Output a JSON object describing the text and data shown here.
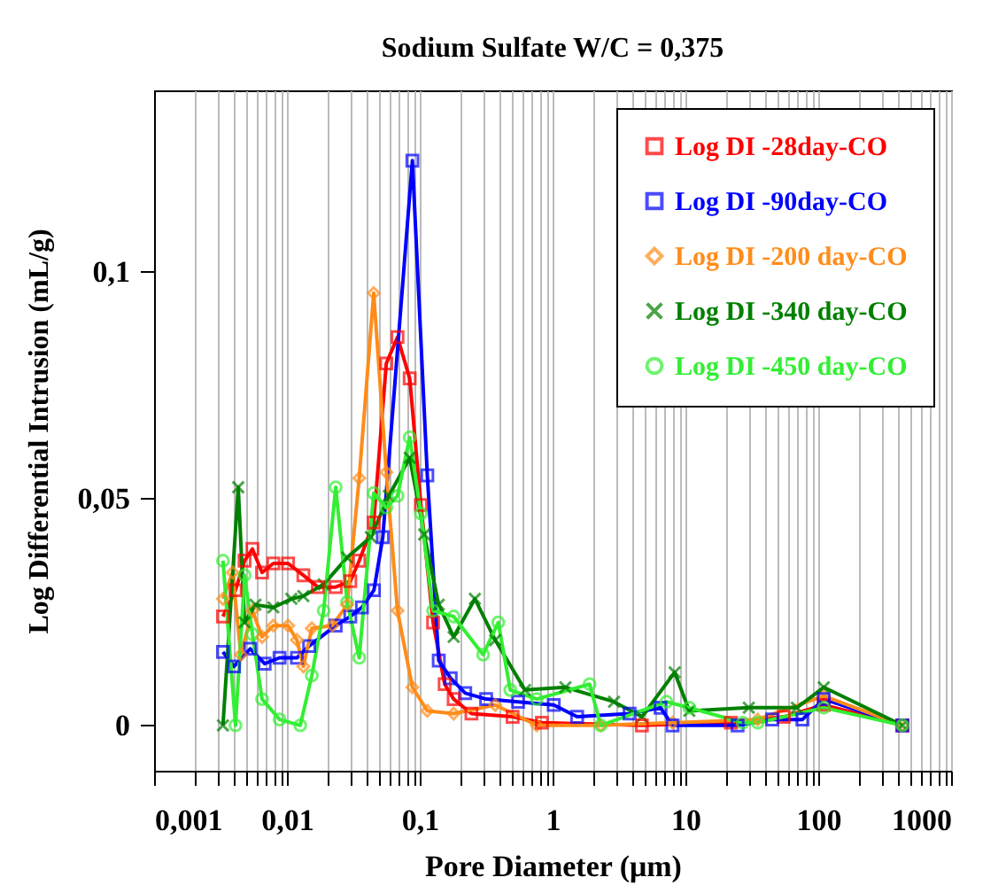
{
  "chart_data": {
    "type": "line",
    "title": "Sodium Sulfate W/C = 0,375",
    "xlabel": "Pore Diameter  (μm)",
    "ylabel": "Log Differential Intrusion  (mL/g)",
    "log": "x",
    "grid": "x",
    "legend": "top right",
    "xlim": [
      0.001,
      1000
    ],
    "ylim": [
      -0.01,
      0.14
    ],
    "xticks": [
      {
        "value": 0.001,
        "label": "0,001"
      },
      {
        "value": 0.002,
        "label": null
      },
      {
        "value": 0.003,
        "label": null
      },
      {
        "value": 0.004,
        "label": null
      },
      {
        "value": 0.005,
        "label": null
      },
      {
        "value": 0.006,
        "label": null
      },
      {
        "value": 0.007,
        "label": null
      },
      {
        "value": 0.008,
        "label": null
      },
      {
        "value": 0.009,
        "label": null
      },
      {
        "value": 0.01,
        "label": "0,01"
      },
      {
        "value": 0.02,
        "label": null
      },
      {
        "value": 0.03,
        "label": null
      },
      {
        "value": 0.04,
        "label": null
      },
      {
        "value": 0.05,
        "label": null
      },
      {
        "value": 0.06,
        "label": null
      },
      {
        "value": 0.07,
        "label": null
      },
      {
        "value": 0.08,
        "label": null
      },
      {
        "value": 0.09,
        "label": null
      },
      {
        "value": 0.1,
        "label": "0,1"
      },
      {
        "value": 0.2,
        "label": null
      },
      {
        "value": 0.3,
        "label": null
      },
      {
        "value": 0.4,
        "label": null
      },
      {
        "value": 0.5,
        "label": null
      },
      {
        "value": 0.6,
        "label": null
      },
      {
        "value": 0.7,
        "label": null
      },
      {
        "value": 0.8,
        "label": null
      },
      {
        "value": 0.9,
        "label": null
      },
      1,
      {
        "value": 2,
        "label": null
      },
      {
        "value": 3,
        "label": null
      },
      {
        "value": 4,
        "label": null
      },
      {
        "value": 5,
        "label": null
      },
      {
        "value": 6,
        "label": null
      },
      {
        "value": 7,
        "label": null
      },
      {
        "value": 8,
        "label": null
      },
      {
        "value": 9,
        "label": null
      },
      10,
      {
        "value": 20,
        "label": null
      },
      {
        "value": 30,
        "label": null
      },
      {
        "value": 40,
        "label": null
      },
      {
        "value": 50,
        "label": null
      },
      {
        "value": 60,
        "label": null
      },
      {
        "value": 70,
        "label": null
      },
      {
        "value": 80,
        "label": null
      },
      {
        "value": 90,
        "label": null
      },
      100,
      {
        "value": 200,
        "label": null
      },
      {
        "value": 300,
        "label": null
      },
      {
        "value": 400,
        "label": null
      },
      {
        "value": 500,
        "label": null
      },
      {
        "value": 600,
        "label": null
      },
      {
        "value": 700,
        "label": null
      },
      {
        "value": 800,
        "label": null
      },
      {
        "value": 900,
        "label": null
      },
      1000
    ],
    "yticks": [
      0,
      {
        "value": 0.05,
        "label": "0,05"
      },
      {
        "value": 0.1,
        "label": "0,1"
      }
    ],
    "series": [
      {
        "name": "Log DI -28day-CO",
        "color": "#ff0000",
        "marker": "square",
        "x": [
          0.0033,
          0.0041,
          0.0048,
          0.0055,
          0.0065,
          0.0079,
          0.0102,
          0.0133,
          0.0171,
          0.0233,
          0.03,
          0.035,
          0.045,
          0.056,
          0.068,
          0.084,
          0.102,
          0.126,
          0.154,
          0.18,
          0.245,
          0.5,
          0.83,
          4.7,
          22,
          55,
          110,
          430
        ],
        "values": [
          0.024,
          0.0298,
          0.0363,
          0.0389,
          0.0337,
          0.0357,
          0.0357,
          0.0331,
          0.0305,
          0.0305,
          0.0318,
          0.0363,
          0.0447,
          0.0798,
          0.0856,
          0.0765,
          0.0486,
          0.0227,
          0.0091,
          0.0058,
          0.0026,
          0.0019,
          0.0006,
          0,
          0.0006,
          0.0019,
          0.0045,
          0
        ]
      },
      {
        "name": "Log DI -90day-CO",
        "color": "#0000ff",
        "marker": "square",
        "x": [
          0.0033,
          0.004,
          0.0053,
          0.0068,
          0.0088,
          0.0119,
          0.0147,
          0.0233,
          0.03,
          0.0367,
          0.0452,
          0.0527,
          0.088,
          0.114,
          0.139,
          0.171,
          0.22,
          0.316,
          0.55,
          1.02,
          1.53,
          3.8,
          6.5,
          8.0,
          24.7,
          45,
          76,
          110,
          430
        ],
        "values": [
          0.0162,
          0.013,
          0.0169,
          0.0136,
          0.0149,
          0.0149,
          0.0175,
          0.022,
          0.024,
          0.026,
          0.0298,
          0.0415,
          0.1245,
          0.0551,
          0.0143,
          0.0104,
          0.0071,
          0.0058,
          0.0052,
          0.0045,
          0.0019,
          0.0026,
          0.0039,
          0,
          0,
          0.0013,
          0.0013,
          0.0058,
          0
        ]
      },
      {
        "name": "Log DI -200 day-CO",
        "color": "#ff8c1a",
        "marker": "diamond",
        "x": [
          0.0033,
          0.0039,
          0.0045,
          0.0055,
          0.0065,
          0.0079,
          0.0102,
          0.0119,
          0.0133,
          0.0154,
          0.022,
          0.0284,
          0.035,
          0.045,
          0.056,
          0.068,
          0.088,
          0.114,
          0.18,
          0.37,
          0.76,
          2.3,
          8.0,
          35,
          110,
          430
        ],
        "values": [
          0.0279,
          0.0337,
          0.0156,
          0.0253,
          0.0195,
          0.022,
          0.022,
          0.0188,
          0.013,
          0.0214,
          0.022,
          0.0266,
          0.0545,
          0.0953,
          0.0558,
          0.0253,
          0.0084,
          0.0032,
          0.0026,
          0.0045,
          0,
          0,
          0.0006,
          0.0013,
          0.0065,
          0
        ]
      },
      {
        "name": "Log DI -340 day-CO",
        "color": "#008000",
        "marker": "cross",
        "x": [
          0.0033,
          0.0043,
          0.0048,
          0.0058,
          0.0079,
          0.0108,
          0.0133,
          0.0189,
          0.0284,
          0.0428,
          0.0585,
          0.084,
          0.108,
          0.139,
          0.18,
          0.26,
          0.37,
          0.62,
          1.25,
          2.9,
          4.7,
          8.3,
          10.7,
          30,
          69,
          110,
          430
        ],
        "values": [
          0,
          0.0525,
          0.0227,
          0.0266,
          0.026,
          0.0279,
          0.0285,
          0.0311,
          0.037,
          0.0415,
          0.0506,
          0.059,
          0.0421,
          0.0266,
          0.0195,
          0.0279,
          0.0188,
          0.0078,
          0.0084,
          0.0052,
          0.0019,
          0.0117,
          0.0032,
          0.0039,
          0.0039,
          0.0084,
          0
        ]
      },
      {
        "name": "Log DI -450 day-CO",
        "color": "#33ee33",
        "marker": "circle",
        "x": [
          0.0033,
          0.0041,
          0.0048,
          0.0055,
          0.0065,
          0.0088,
          0.0126,
          0.0154,
          0.0189,
          0.0233,
          0.0284,
          0.035,
          0.045,
          0.056,
          0.068,
          0.084,
          0.102,
          0.126,
          0.18,
          0.3,
          0.39,
          0.48,
          0.76,
          1.9,
          2.3,
          7.2,
          10.7,
          27,
          35,
          110,
          430
        ],
        "values": [
          0.0363,
          0,
          0.0331,
          0.0201,
          0.0058,
          0.0013,
          0,
          0.011,
          0.0253,
          0.0525,
          0.0272,
          0.0149,
          0.0512,
          0.048,
          0.0506,
          0.0635,
          0.0467,
          0.0253,
          0.024,
          0.0156,
          0.0227,
          0.0078,
          0.0058,
          0.0091,
          0,
          0.0052,
          0.0039,
          0.0006,
          0.0006,
          0.0039,
          0
        ]
      }
    ]
  }
}
